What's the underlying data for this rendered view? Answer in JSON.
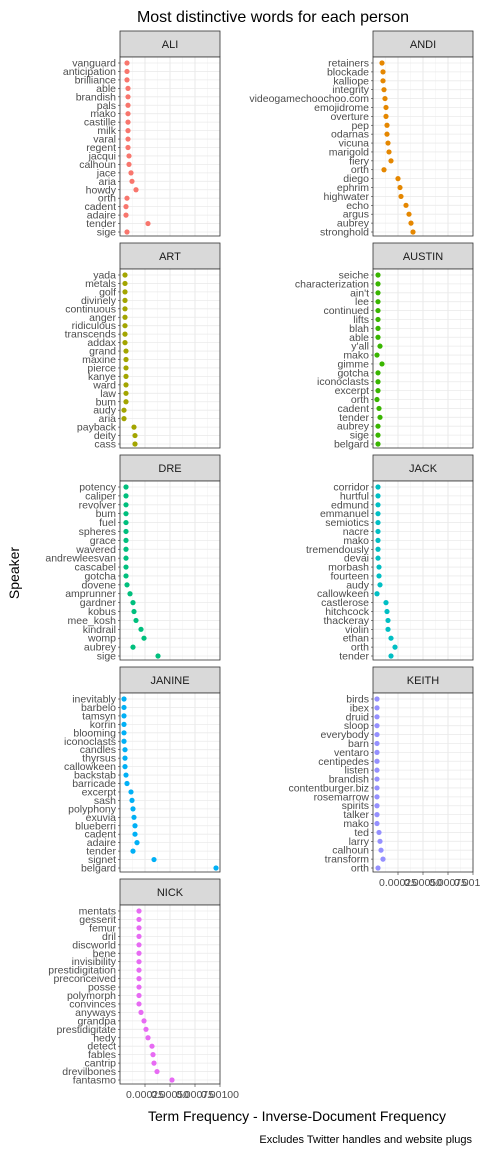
{
  "chart_data": {
    "type": "scatter",
    "title": "Most distinctive words for each person",
    "xlabel": "Term Frequency - Inverse-Document Frequency",
    "ylabel": "Speaker",
    "caption": "Excludes Twitter handles and website plugs",
    "xlim": [
      0,
      0.001
    ],
    "x_tick_labels": [
      "0.00025",
      "0.00050",
      "0.00075",
      "0.00100"
    ],
    "x_ticks": [
      0.00025,
      0.0005,
      0.00075,
      0.001
    ],
    "grid": true,
    "panels": [
      {
        "name": "ALI",
        "color": "#F8766D",
        "words": [
          "vanguard",
          "anticipation",
          "brilliance",
          "able",
          "brandish",
          "pals",
          "mako",
          "castille",
          "milk",
          "varal",
          "regent",
          "jacqui",
          "calhoun",
          "jace",
          "aria",
          "howdy",
          "orth",
          "cadent",
          "adaire",
          "tender",
          "sige"
        ],
        "values": [
          7e-05,
          7e-05,
          7e-05,
          8e-05,
          8e-05,
          8e-05,
          8e-05,
          8e-05,
          8e-05,
          8e-05,
          8e-05,
          9e-05,
          9e-05,
          0.00011,
          0.00012,
          0.00016,
          7e-05,
          6e-05,
          6e-05,
          0.00028,
          7e-05
        ]
      },
      {
        "name": "ANDI",
        "color": "#E58700",
        "words": [
          "retainers",
          "blockade",
          "kalliope",
          "integrity",
          "videogamechoochoo.com",
          "emojidrome",
          "overture",
          "pep",
          "odarnas",
          "vicuna",
          "marigold",
          "fiery",
          "orth",
          "diego",
          "ephrim",
          "highwater",
          "echo",
          "argus",
          "aubrey",
          "stronghold"
        ],
        "values": [
          9e-05,
          0.0001,
          0.0001,
          0.00011,
          0.00012,
          0.00013,
          0.00013,
          0.00014,
          0.00014,
          0.00015,
          0.00016,
          0.00018,
          0.00011,
          0.00025,
          0.00027,
          0.00028,
          0.00033,
          0.00036,
          0.00038,
          0.0004
        ]
      },
      {
        "name": "ART",
        "color": "#A3A500",
        "words": [
          "yada",
          "metals",
          "golf",
          "divinely",
          "continuous",
          "anger",
          "ridiculous",
          "transcends",
          "addax",
          "grand",
          "maxine",
          "pierce",
          "kanye",
          "ward",
          "law",
          "bum",
          "audy",
          "aria",
          "payback",
          "deity",
          "cass"
        ],
        "values": [
          5e-05,
          5e-05,
          5e-05,
          5e-05,
          5e-05,
          5e-05,
          5e-05,
          5e-05,
          5e-05,
          6e-05,
          6e-05,
          6e-05,
          6e-05,
          6e-05,
          6e-05,
          6e-05,
          4e-05,
          4e-05,
          0.00014,
          0.00015,
          0.00015
        ]
      },
      {
        "name": "AUSTIN",
        "color": "#39B600",
        "words": [
          "seiche",
          "characterization",
          "ain't",
          "lee",
          "continued",
          "lifts",
          "blah",
          "able",
          "y'all",
          "mako",
          "gimme",
          "gotcha",
          "iconoclasts",
          "excerpt",
          "orth",
          "cadent",
          "tender",
          "aubrey",
          "sige",
          "belgard"
        ],
        "values": [
          5e-05,
          5e-05,
          5e-05,
          5e-05,
          5e-05,
          5e-05,
          5e-05,
          5e-05,
          7e-05,
          4e-05,
          9e-05,
          5e-05,
          5e-05,
          5e-05,
          4e-05,
          6e-05,
          7e-05,
          5e-05,
          5e-05,
          5e-05
        ]
      },
      {
        "name": "DRE",
        "color": "#00BF7D",
        "words": [
          "potency",
          "caliper",
          "revolver",
          "bum",
          "fuel",
          "spheres",
          "grace",
          "wavered",
          "andrewleesvan",
          "cascabel",
          "gotcha",
          "dovene",
          "amprunner",
          "gardner",
          "kobus",
          "mee_kosh",
          "kindrail",
          "womp",
          "aubrey",
          "sige"
        ],
        "values": [
          6e-05,
          6e-05,
          6e-05,
          6e-05,
          6e-05,
          6e-05,
          6e-05,
          6e-05,
          6e-05,
          6e-05,
          6e-05,
          7e-05,
          0.0001,
          0.00013,
          0.00014,
          0.00016,
          0.00021,
          0.00024,
          0.00013,
          0.00038
        ]
      },
      {
        "name": "JACK",
        "color": "#00BFC4",
        "words": [
          "corridor",
          "hurtful",
          "edmund",
          "emmanuel",
          "semiotics",
          "nacre",
          "mako",
          "tremendously",
          "devai",
          "morbash",
          "fourteen",
          "audy",
          "callowkeen",
          "castlerose",
          "hitchcock",
          "thackeray",
          "violin",
          "ethan",
          "orth",
          "tender"
        ],
        "values": [
          5e-05,
          5e-05,
          5e-05,
          5e-05,
          5e-05,
          5e-05,
          5e-05,
          5e-05,
          5e-05,
          6e-05,
          6e-05,
          7e-05,
          4e-05,
          0.00013,
          0.00014,
          0.00015,
          0.00015,
          0.00018,
          0.00022,
          0.00018
        ]
      },
      {
        "name": "JANINE",
        "color": "#00B0F6",
        "words": [
          "inevitably",
          "barbelo",
          "tamsyn",
          "korrin",
          "blooming",
          "iconoclasts",
          "candles",
          "thyrsus",
          "callowkeen",
          "backstab",
          "barricade",
          "excerpt",
          "sash",
          "polyphony",
          "exuvia",
          "blueberri",
          "cadent",
          "adaire",
          "tender",
          "signet",
          "belgard"
        ],
        "values": [
          4e-05,
          4e-05,
          4e-05,
          4e-05,
          4e-05,
          4e-05,
          5e-05,
          5e-05,
          5e-05,
          6e-05,
          7e-05,
          0.00011,
          0.00012,
          0.00013,
          0.00014,
          0.00015,
          0.00015,
          0.00017,
          0.00013,
          0.00034,
          0.00096
        ]
      },
      {
        "name": "KEITH",
        "color": "#9590FF",
        "words": [
          "birds",
          "ibex",
          "druid",
          "sloop",
          "everybody",
          "barn",
          "ventaro",
          "centipedes",
          "listen",
          "brandish",
          "contentburger.biz",
          "rosemarrow",
          "spirits",
          "talker",
          "mako",
          "ted",
          "larry",
          "calhoun",
          "transform",
          "orth"
        ],
        "values": [
          4e-05,
          4e-05,
          4e-05,
          4e-05,
          4e-05,
          4e-05,
          4e-05,
          4e-05,
          4e-05,
          4e-05,
          4e-05,
          4e-05,
          4e-05,
          4e-05,
          4e-05,
          6e-05,
          7e-05,
          8e-05,
          0.0001,
          5e-05
        ]
      },
      {
        "name": "NICK",
        "color": "#E76BF3",
        "words": [
          "mentats",
          "gesserit",
          "femur",
          "dril",
          "discworld",
          "bene",
          "invisibility",
          "prestidigitation",
          "preconceived",
          "posse",
          "polymorph",
          "convinces",
          "anyways",
          "grandpa",
          "prestidigitate",
          "hedy",
          "detect",
          "fables",
          "cantrip",
          "drevilbones",
          "fantasmo"
        ],
        "values": [
          0.00019,
          0.00019,
          0.00019,
          0.00019,
          0.00019,
          0.00019,
          0.00019,
          0.00019,
          0.00019,
          0.00019,
          0.00019,
          0.00019,
          0.00021,
          0.00024,
          0.00026,
          0.00028,
          0.00032,
          0.00033,
          0.00034,
          0.00037,
          0.00052
        ]
      }
    ]
  }
}
